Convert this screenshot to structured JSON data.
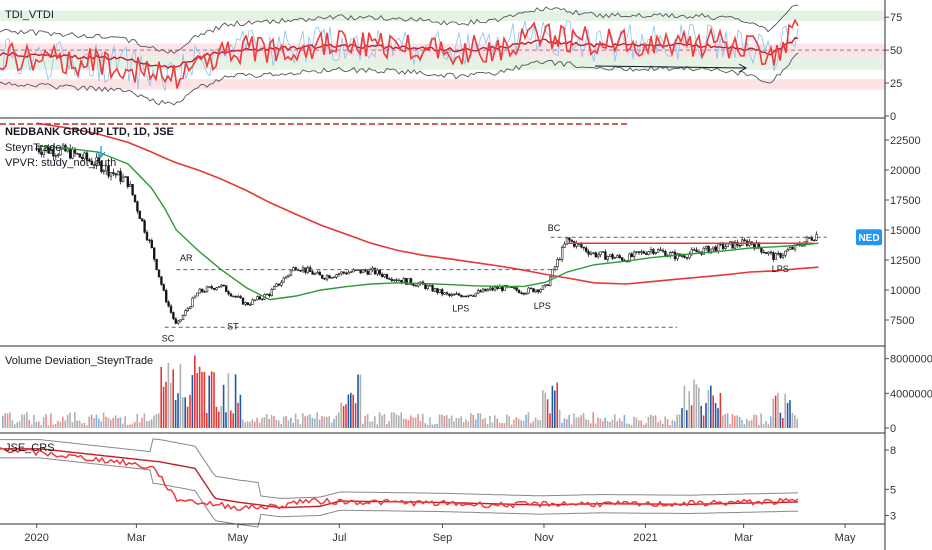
{
  "chart_data": [
    {
      "type": "line",
      "pane": "tdi",
      "title": "TDI_VTDI",
      "ylim": [
        0,
        85
      ],
      "yticks": [
        "75",
        "50",
        "25",
        "0"
      ],
      "bands": [
        {
          "from": 72,
          "to": 80,
          "color": "#e6f2e6"
        },
        {
          "from": 45,
          "to": 55,
          "color": "#fde3e6"
        },
        {
          "from": 35,
          "to": 45,
          "color": "#e6f2e6"
        },
        {
          "from": 20,
          "to": 28,
          "color": "#fde3e6"
        }
      ],
      "series": [],
      "colors": {
        "rsi": "#ef3b3b",
        "signal": "#c21d2a",
        "bands": "#555555",
        "fast": "#8fc1e8"
      }
    },
    {
      "type": "candlestick",
      "pane": "price",
      "title": "NEDBANK GROUP LTD, 1D, JSE",
      "subtitles": [
        "SteynTrade",
        "VPVR: study_not_auth"
      ],
      "price_tag": "NED",
      "ylim": [
        5500,
        24000
      ],
      "yticks": [
        "22500",
        "20000",
        "17500",
        "15000",
        "12500",
        "10000",
        "7500"
      ],
      "x": [
        "2020-01-01",
        "2020-01-20",
        "2020-02-07",
        "2020-02-25",
        "2020-03-10",
        "2020-03-18",
        "2020-03-25",
        "2020-04-07",
        "2020-04-20",
        "2020-05-06",
        "2020-05-20",
        "2020-06-05",
        "2020-06-20",
        "2020-07-06",
        "2020-07-20",
        "2020-08-05",
        "2020-08-20",
        "2020-09-05",
        "2020-09-20",
        "2020-10-05",
        "2020-10-20",
        "2020-11-02",
        "2020-11-15",
        "2020-12-01",
        "2020-12-20",
        "2021-01-05",
        "2021-01-20",
        "2021-02-05",
        "2021-02-20",
        "2021-03-05",
        "2021-03-20",
        "2021-04-05",
        "2021-04-15"
      ],
      "close": [
        21800,
        21500,
        20500,
        19000,
        13500,
        9500,
        7000,
        9800,
        10400,
        8800,
        9700,
        12000,
        11100,
        11500,
        11600,
        10900,
        10400,
        9500,
        9700,
        10200,
        9900,
        10200,
        14200,
        13000,
        12600,
        13400,
        12800,
        13300,
        13700,
        14000,
        12700,
        13900,
        14700
      ],
      "ma_fast": [
        22000,
        21800,
        21500,
        20500,
        18500,
        16800,
        15000,
        13300,
        11800,
        10200,
        9200,
        9500,
        10000,
        10300,
        10500,
        10600,
        10550,
        10450,
        10350,
        10300,
        10300,
        10650,
        11500,
        12100,
        12400,
        12700,
        12900,
        13100,
        13300,
        13500,
        13600,
        13750,
        13900
      ],
      "ma_slow": [
        23900,
        23500,
        23000,
        22300,
        21500,
        21000,
        20600,
        20000,
        19300,
        18300,
        17300,
        16300,
        15400,
        14600,
        13900,
        13300,
        12900,
        12600,
        12300,
        12000,
        11650,
        11300,
        11000,
        10600,
        10500,
        10700,
        10900,
        11100,
        11300,
        11500,
        11600,
        11800,
        11900
      ],
      "lines": [
        {
          "name": "trading range low",
          "y": 6900,
          "x0": "2020-03-18",
          "x1": "2021-01-20",
          "style": "dashed"
        },
        {
          "name": "AR level",
          "y": 11700,
          "x0": "2020-03-25",
          "x1": "2020-11-10",
          "style": "dashed"
        },
        {
          "name": "BC level",
          "y": 14400,
          "x0": "2020-11-05",
          "x1": "2021-04-20",
          "style": "dashed"
        },
        {
          "name": "resistance",
          "y": 13900,
          "x0": "2020-11-15",
          "x1": "2021-04-12",
          "style": "solid"
        }
      ],
      "annotations": [
        {
          "text": "AR",
          "x": "2020-03-31",
          "y": 12400
        },
        {
          "text": "ST",
          "x": "2020-04-28",
          "y": 6700
        },
        {
          "text": "SC",
          "x": "2020-03-20",
          "y": 5700
        },
        {
          "text": "LPS",
          "x": "2020-09-12",
          "y": 8200
        },
        {
          "text": "LPS",
          "x": "2020-10-31",
          "y": 8400
        },
        {
          "text": "BC",
          "x": "2020-11-07",
          "y": 14900
        },
        {
          "text": "LPS",
          "x": "2021-03-23",
          "y": 11500
        }
      ],
      "colors": {
        "up": "#333333",
        "down": "#111111",
        "ma_fast": "#2e9a35",
        "ma_slow": "#e53935",
        "levels": "#5a6472",
        "resistance": "#e53935",
        "tag": "#2196f3"
      }
    },
    {
      "type": "bar",
      "pane": "volume",
      "title": "Volume Deviation_SteynTrade",
      "ylim": [
        0,
        9000000
      ],
      "yticks": [
        "8000000",
        "4000000",
        "0"
      ],
      "values": [],
      "colors": {
        "high_down": "#e53935",
        "high_up": "#1e5aa8",
        "normal": "#b0b0b0",
        "mid_down": "#f48a8a",
        "mid_up": "#7fb0dd"
      }
    },
    {
      "type": "line",
      "pane": "crs",
      "title": "JSE_CRS",
      "ylim": [
        2.5,
        9
      ],
      "yticks": [
        "8",
        "5",
        "3"
      ],
      "series": [],
      "colors": {
        "crs": "#ef3b3b",
        "ma": "#c21d2a",
        "bands": "#888888"
      }
    }
  ],
  "x_axis": [
    "2020",
    "Mar",
    "May",
    "Jul",
    "Sep",
    "Nov",
    "2021",
    "Mar",
    "May"
  ]
}
